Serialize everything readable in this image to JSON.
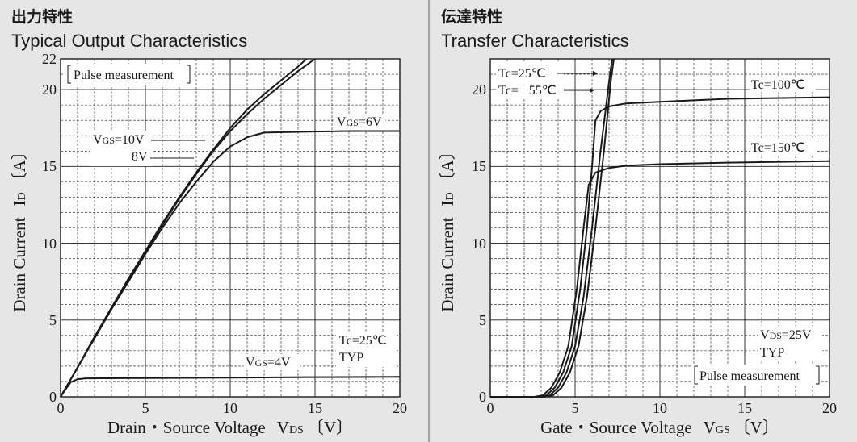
{
  "chart_data": [
    {
      "type": "line",
      "title_jp": "出力特性",
      "title": "Typical Output Characteristics",
      "xlabel": "Drain・Source Voltage",
      "xlabel_symbol": "V",
      "xlabel_sub": "DS",
      "xlabel_unit": "〔V〕",
      "ylabel": "Drain Current",
      "ylabel_symbol": "I",
      "ylabel_sub": "D",
      "ylabel_unit": "〔A〕",
      "xlim": [
        0,
        20
      ],
      "ylim": [
        0,
        22
      ],
      "xticks": [
        "0",
        "5",
        "10",
        "15",
        "20"
      ],
      "yticks": [
        "0",
        "5",
        "10",
        "15",
        "20",
        "22"
      ],
      "grid": true,
      "annotations": {
        "pulse": "Pulse measurement",
        "tc": "Tc=25℃",
        "typ": "TYP",
        "vgs10_prefix": "V",
        "vgs10_sub": "GS",
        "vgs10_value": "=10V",
        "vgs8": "8V",
        "vgs6_prefix": "V",
        "vgs6_sub": "GS",
        "vgs6_value": "=6V",
        "vgs4_prefix": "V",
        "vgs4_sub": "GS",
        "vgs4_value": "=4V"
      },
      "series": [
        {
          "name": "VGS=10V",
          "points": [
            [
              0,
              0
            ],
            [
              1,
              1.9
            ],
            [
              2,
              3.9
            ],
            [
              3,
              5.8
            ],
            [
              4,
              7.7
            ],
            [
              5,
              9.5
            ],
            [
              6,
              11.3
            ],
            [
              7,
              13.0
            ],
            [
              8,
              14.6
            ],
            [
              9,
              16.1
            ],
            [
              10,
              17.5
            ],
            [
              11,
              18.7
            ],
            [
              12,
              19.7
            ],
            [
              13,
              20.6
            ],
            [
              14,
              21.5
            ],
            [
              14.5,
              22.0
            ]
          ]
        },
        {
          "name": "8V",
          "points": [
            [
              0,
              0
            ],
            [
              1,
              1.9
            ],
            [
              2,
              3.9
            ],
            [
              3,
              5.8
            ],
            [
              4,
              7.6
            ],
            [
              5,
              9.4
            ],
            [
              6,
              11.2
            ],
            [
              7,
              12.9
            ],
            [
              8,
              14.5
            ],
            [
              9,
              16.0
            ],
            [
              10,
              17.3
            ],
            [
              11,
              18.4
            ],
            [
              12,
              19.4
            ],
            [
              13,
              20.3
            ],
            [
              14,
              21.2
            ],
            [
              15,
              22.0
            ]
          ]
        },
        {
          "name": "VGS=6V",
          "points": [
            [
              0,
              0
            ],
            [
              1,
              1.9
            ],
            [
              2,
              3.8
            ],
            [
              3,
              5.7
            ],
            [
              4,
              7.5
            ],
            [
              5,
              9.3
            ],
            [
              6,
              11.0
            ],
            [
              7,
              12.6
            ],
            [
              8,
              14.0
            ],
            [
              9,
              15.3
            ],
            [
              10,
              16.3
            ],
            [
              11,
              16.9
            ],
            [
              12,
              17.2
            ],
            [
              14,
              17.25
            ],
            [
              17,
              17.3
            ],
            [
              20,
              17.3
            ]
          ]
        },
        {
          "name": "VGS=4V",
          "points": [
            [
              0,
              0
            ],
            [
              0.3,
              0.5
            ],
            [
              0.6,
              0.95
            ],
            [
              1,
              1.15
            ],
            [
              1.5,
              1.2
            ],
            [
              5,
              1.22
            ],
            [
              10,
              1.25
            ],
            [
              15,
              1.28
            ],
            [
              20,
              1.3
            ]
          ]
        }
      ]
    },
    {
      "type": "line",
      "title_jp": "伝達特性",
      "title": "Transfer Characteristics",
      "xlabel": "Gate・Source Voltage",
      "xlabel_symbol": "V",
      "xlabel_sub": "GS",
      "xlabel_unit": "〔V〕",
      "ylabel": "Drain Current",
      "ylabel_symbol": "I",
      "ylabel_sub": "D",
      "ylabel_unit": "〔A〕",
      "xlim": [
        0,
        20
      ],
      "ylim": [
        0,
        22
      ],
      "xticks": [
        "0",
        "5",
        "10",
        "15",
        "20"
      ],
      "yticks": [
        "0",
        "5",
        "10",
        "15",
        "20"
      ],
      "grid": true,
      "annotations": {
        "tc25": "Tc=25℃",
        "tc55": "Tc= −55℃",
        "tc100": "Tc=100℃",
        "tc150": "Tc=150℃",
        "vds_prefix": "V",
        "vds_sub": "DS",
        "vds_value": "=25V",
        "typ": "TYP",
        "pulse": "Pulse measurement"
      },
      "series": [
        {
          "name": "Tc=25℃",
          "points": [
            [
              0,
              0
            ],
            [
              3,
              0
            ],
            [
              3.5,
              0.1
            ],
            [
              4,
              0.6
            ],
            [
              4.5,
              1.6
            ],
            [
              5,
              3.3
            ],
            [
              5.5,
              6.5
            ],
            [
              6,
              11
            ],
            [
              6.5,
              16
            ],
            [
              7,
              20.5
            ],
            [
              7.3,
              23
            ]
          ]
        },
        {
          "name": "Tc= −55℃",
          "points": [
            [
              0,
              0
            ],
            [
              3.2,
              0
            ],
            [
              3.7,
              0.1
            ],
            [
              4.2,
              0.6
            ],
            [
              4.7,
              1.6
            ],
            [
              5.2,
              3.3
            ],
            [
              5.7,
              6.5
            ],
            [
              6.2,
              11
            ],
            [
              6.7,
              16
            ],
            [
              7.1,
              20.5
            ],
            [
              7.4,
              23
            ]
          ]
        },
        {
          "name": "Tc=100℃",
          "points": [
            [
              0,
              0
            ],
            [
              2.8,
              0
            ],
            [
              3.3,
              0.1
            ],
            [
              3.8,
              0.6
            ],
            [
              4.3,
              1.6
            ],
            [
              4.8,
              3.3
            ],
            [
              5.3,
              7
            ],
            [
              5.7,
              11
            ],
            [
              6,
              15
            ],
            [
              6.2,
              18
            ],
            [
              6.5,
              18.6
            ],
            [
              7,
              18.9
            ],
            [
              8,
              19.1
            ],
            [
              10,
              19.2
            ],
            [
              14,
              19.4
            ],
            [
              20,
              19.5
            ]
          ]
        },
        {
          "name": "Tc=150℃",
          "points": [
            [
              0,
              0
            ],
            [
              2.6,
              0
            ],
            [
              3.1,
              0.1
            ],
            [
              3.6,
              0.6
            ],
            [
              4.1,
              1.6
            ],
            [
              4.6,
              3.3
            ],
            [
              5.1,
              7
            ],
            [
              5.5,
              11
            ],
            [
              5.8,
              13.8
            ],
            [
              6.2,
              14.6
            ],
            [
              7,
              14.9
            ],
            [
              8,
              15.05
            ],
            [
              10,
              15.15
            ],
            [
              14,
              15.25
            ],
            [
              20,
              15.35
            ]
          ]
        }
      ]
    }
  ]
}
